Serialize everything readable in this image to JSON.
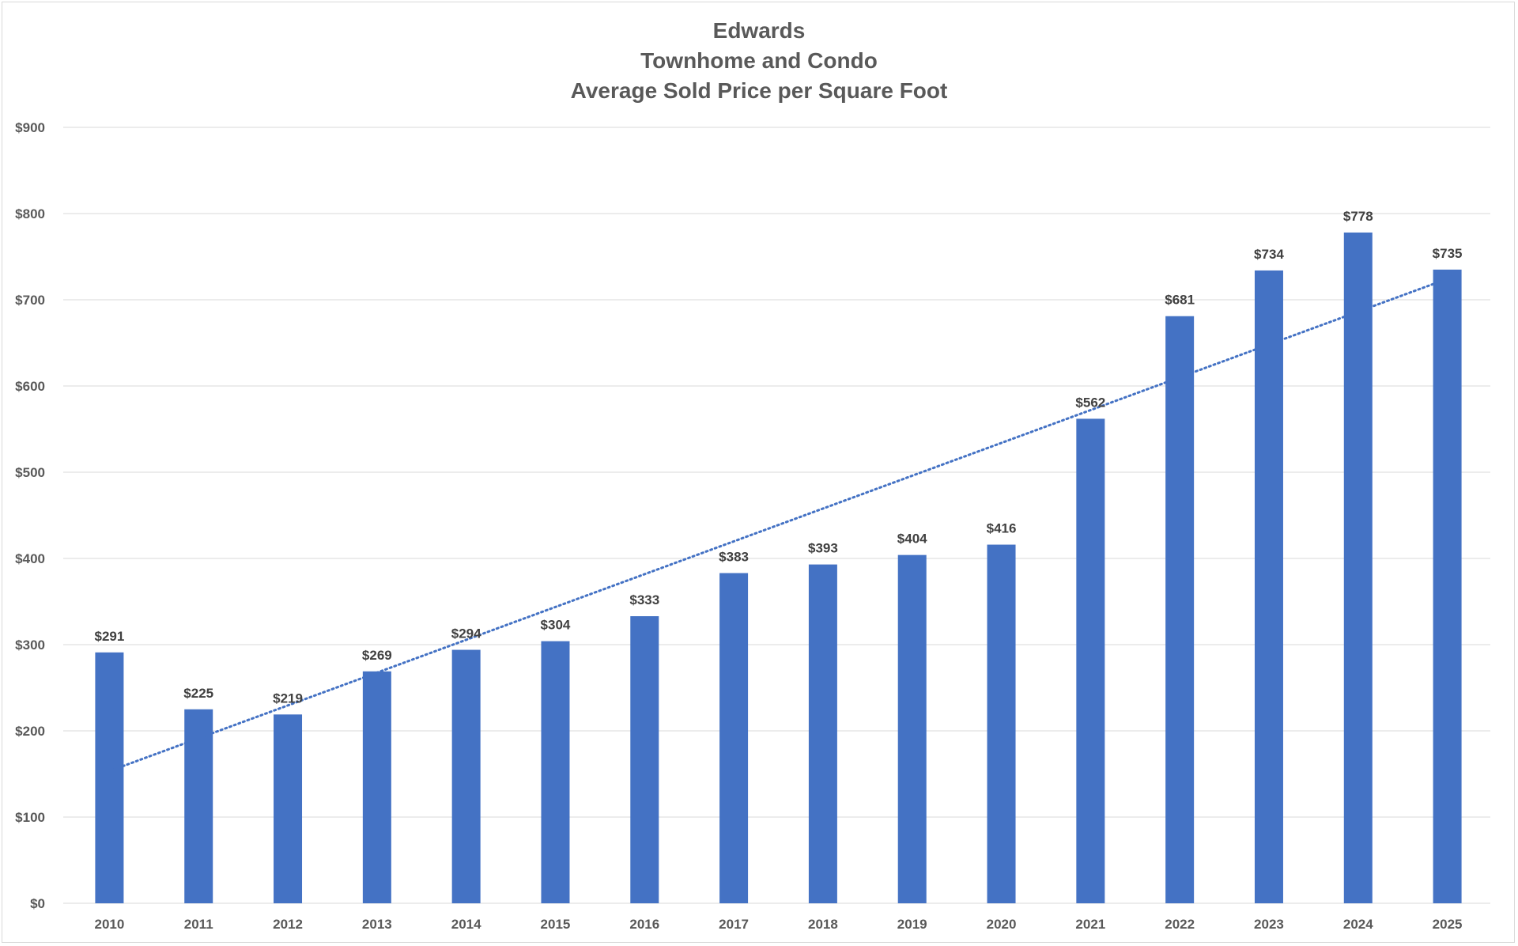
{
  "chart_data": {
    "type": "bar",
    "title_lines": [
      "Edwards",
      "Townhome and Condo",
      "Average Sold Price per Square Foot"
    ],
    "categories": [
      "2010",
      "2011",
      "2012",
      "2013",
      "2014",
      "2015",
      "2016",
      "2017",
      "2018",
      "2019",
      "2020",
      "2021",
      "2022",
      "2023",
      "2024",
      "2025"
    ],
    "values": [
      291,
      225,
      219,
      269,
      294,
      304,
      333,
      383,
      393,
      404,
      416,
      562,
      681,
      734,
      778,
      735
    ],
    "data_labels": [
      "$291",
      "$225",
      "$219",
      "$269",
      "$294",
      "$304",
      "$333",
      "$383",
      "$393",
      "$404",
      "$416",
      "$562",
      "$681",
      "$734",
      "$778",
      "$735"
    ],
    "y_ticks": [
      0,
      100,
      200,
      300,
      400,
      500,
      600,
      700,
      800,
      900
    ],
    "y_tick_labels": [
      "$0",
      "$100",
      "$200",
      "$300",
      "$400",
      "$500",
      "$600",
      "$700",
      "$800",
      "$900"
    ],
    "ylim": [
      0,
      900
    ],
    "xlabel": "",
    "ylabel": "",
    "grid": true,
    "legend": "none",
    "trendline": {
      "type": "linear",
      "style": "dotted",
      "color": "#4472c4"
    },
    "colors": {
      "bar": "#4472c4",
      "grid": "#d9d9d9",
      "text": "#595959"
    }
  }
}
